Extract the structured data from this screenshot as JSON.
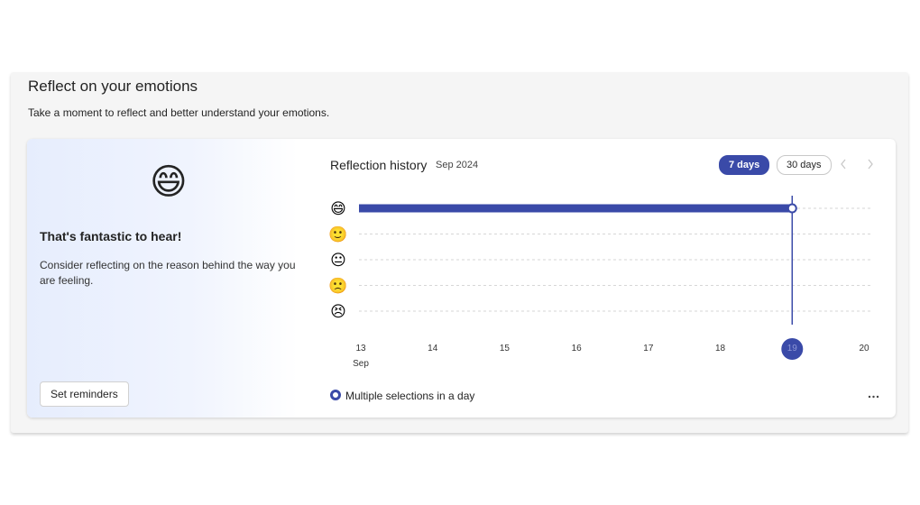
{
  "header": {
    "title": "Reflect on your emotions",
    "subtitle": "Take a moment to reflect and better understand your emotions."
  },
  "left_panel": {
    "emoji": "😄",
    "message": "That's fantastic to hear!",
    "body": "Consider reflecting on the reason behind the way you are feeling.",
    "button": "Set reminders"
  },
  "history": {
    "title": "Reflection history",
    "period": "Sep 2024",
    "ranges": [
      {
        "label": "7 days",
        "active": true
      },
      {
        "label": "30 days",
        "active": false
      }
    ]
  },
  "chart_data": {
    "type": "line",
    "xlim": [
      13,
      20
    ],
    "xticks": [
      13,
      14,
      15,
      16,
      17,
      18,
      19,
      20
    ],
    "month_label": "Sep",
    "highlight_x": 19,
    "ylim": [
      1,
      5
    ],
    "yticks": [
      {
        "value": 1,
        "label": "😣"
      },
      {
        "value": 2,
        "label": "🙁"
      },
      {
        "value": 3,
        "label": "😐"
      },
      {
        "value": 4,
        "label": "🙂"
      },
      {
        "value": 5,
        "label": "😄"
      }
    ],
    "grid": true,
    "series": [
      {
        "name": "Multiple selections in a day",
        "color": "#3a4aa8",
        "x": [
          13,
          19
        ],
        "values": [
          5,
          5
        ]
      }
    ]
  }
}
